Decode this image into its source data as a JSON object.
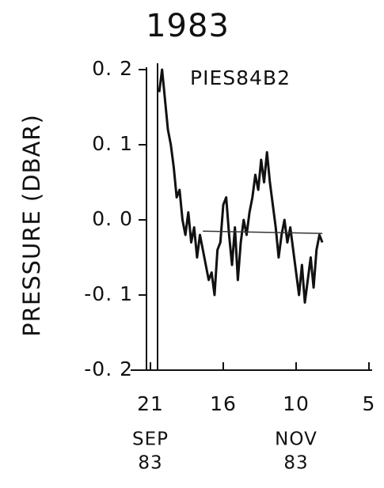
{
  "chart_data": {
    "type": "line",
    "title": "1983",
    "annotation": "PIES84B2",
    "y_label": "PRESSURE (DBAR)",
    "xlim": [
      0,
      75
    ],
    "xticks": [
      {
        "value": 0,
        "label": "21"
      },
      {
        "value": 25,
        "label": "16"
      },
      {
        "value": 50,
        "label": "10"
      },
      {
        "value": 75,
        "label": "5"
      }
    ],
    "month_labels": [
      {
        "value": 0,
        "label": "SEP",
        "year": "83"
      },
      {
        "value": 50,
        "label": "NOV",
        "year": "83"
      }
    ],
    "ylim": [
      -0.2,
      0.2
    ],
    "yticks": [
      {
        "value": 0.2,
        "label": "0. 2"
      },
      {
        "value": 0.1,
        "label": "0. 1"
      },
      {
        "value": 0,
        "label": "0. 0"
      },
      {
        "value": -0.1,
        "label": "-0. 1"
      },
      {
        "value": -0.2,
        "label": "-0. 2"
      }
    ],
    "series": [
      {
        "color": "#111111",
        "x": [
          3,
          4,
          5,
          6,
          7,
          8,
          9,
          10,
          11,
          12,
          13,
          14,
          15,
          16,
          17,
          18,
          19,
          20,
          21,
          22,
          23,
          24,
          25,
          26,
          27,
          28,
          29,
          30,
          31,
          32,
          33,
          34,
          35,
          36,
          37,
          38,
          39,
          40,
          41,
          42,
          43,
          44,
          45,
          46,
          47,
          48,
          49,
          50,
          51,
          52,
          53,
          54,
          55,
          56,
          57,
          58,
          59
        ],
        "values": [
          0.17,
          0.2,
          0.16,
          0.12,
          0.1,
          0.07,
          0.03,
          0.04,
          0.0,
          -0.02,
          0.01,
          -0.03,
          -0.01,
          -0.05,
          -0.02,
          -0.04,
          -0.06,
          -0.08,
          -0.07,
          -0.1,
          -0.04,
          -0.03,
          0.02,
          0.03,
          -0.02,
          -0.06,
          -0.01,
          -0.08,
          -0.03,
          0.0,
          -0.02,
          0.01,
          0.03,
          0.06,
          0.04,
          0.08,
          0.05,
          0.09,
          0.05,
          0.02,
          -0.01,
          -0.05,
          -0.02,
          0.0,
          -0.03,
          -0.01,
          -0.04,
          -0.07,
          -0.1,
          -0.06,
          -0.11,
          -0.08,
          -0.05,
          -0.09,
          -0.04,
          -0.02,
          -0.03
        ]
      },
      {
        "color": "#333333",
        "x": [
          18,
          59
        ],
        "values": [
          -0.015,
          -0.018
        ]
      }
    ]
  }
}
